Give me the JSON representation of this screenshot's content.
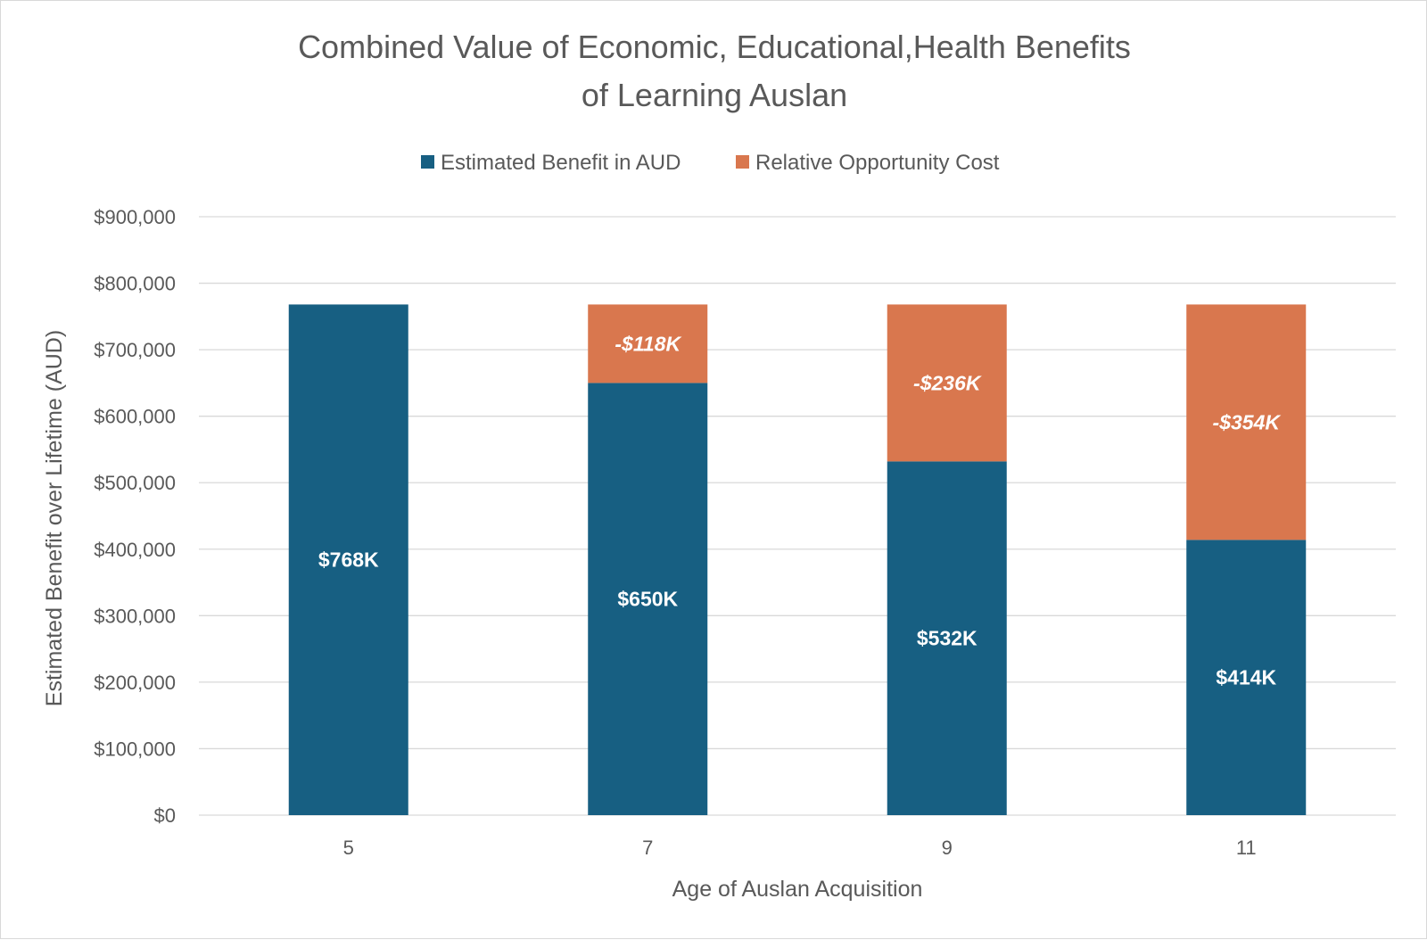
{
  "chart_data": {
    "type": "bar",
    "stacked": true,
    "title_lines": [
      "Combined Value of Economic, Educational,Health Benefits",
      "of Learning Auslan"
    ],
    "xlabel": "Age of Auslan Acquisition",
    "ylabel": "Estimated Benefit over Lifetime (AUD)",
    "categories": [
      "5",
      "7",
      "9",
      "11"
    ],
    "ylim": [
      0,
      900000
    ],
    "yticks": [
      0,
      100000,
      200000,
      300000,
      400000,
      500000,
      600000,
      700000,
      800000,
      900000
    ],
    "ytick_labels": [
      "$0",
      "$100,000",
      "$200,000",
      "$300,000",
      "$400,000",
      "$500,000",
      "$600,000",
      "$700,000",
      "$800,000",
      "$900,000"
    ],
    "grid": true,
    "legend_position": "top",
    "series": [
      {
        "name": "Estimated Benefit in AUD",
        "color": "#175f82",
        "values": [
          768000,
          650000,
          532000,
          414000
        ],
        "data_labels": [
          "$768K",
          "$650K",
          "$532K",
          "$414K"
        ]
      },
      {
        "name": "Relative Opportunity Cost",
        "color": "#d9774e",
        "values": [
          0,
          118000,
          236000,
          354000
        ],
        "data_labels": [
          "",
          "-$118K",
          "-$236K",
          "-$354K"
        ]
      }
    ]
  }
}
